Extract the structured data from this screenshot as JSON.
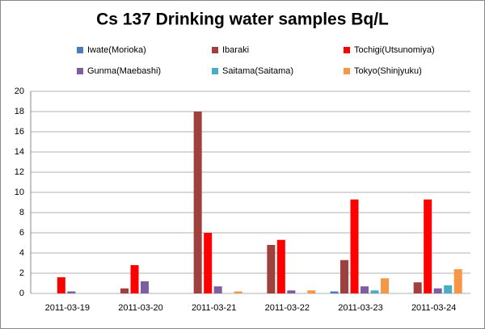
{
  "chart_data": {
    "type": "bar",
    "title": "Cs 137 Drinking water samples Bq/L",
    "categories": [
      "2011-03-19",
      "2011-03-20",
      "2011-03-21",
      "2011-03-22",
      "2011-03-23",
      "2011-03-24"
    ],
    "series": [
      {
        "name": "Iwate(Morioka)",
        "color": "#4a7ebb",
        "values": [
          0,
          0,
          0,
          0,
          0.2,
          0
        ]
      },
      {
        "name": "Ibaraki",
        "color": "#a0403e",
        "values": [
          0,
          0.5,
          18,
          4.8,
          3.3,
          1.1
        ]
      },
      {
        "name": "Tochigi(Utsunomiya)",
        "color": "#ff0000",
        "values": [
          1.6,
          2.8,
          6,
          5.3,
          9.3,
          9.3
        ]
      },
      {
        "name": "Gunma(Maebashi)",
        "color": "#7d5fa0",
        "values": [
          0.2,
          1.2,
          0.7,
          0.3,
          0.7,
          0.5
        ]
      },
      {
        "name": "Saitama(Saitama)",
        "color": "#4bacc6",
        "values": [
          0,
          0,
          0,
          0,
          0.3,
          0.8
        ]
      },
      {
        "name": "Tokyo(Shinjyuku)",
        "color": "#f79646",
        "values": [
          0,
          0,
          0.2,
          0.3,
          1.5,
          2.4
        ]
      }
    ],
    "ylim": [
      0,
      20
    ],
    "yticks": [
      0,
      2,
      4,
      6,
      8,
      10,
      12,
      14,
      16,
      18,
      20
    ],
    "grid": true
  }
}
